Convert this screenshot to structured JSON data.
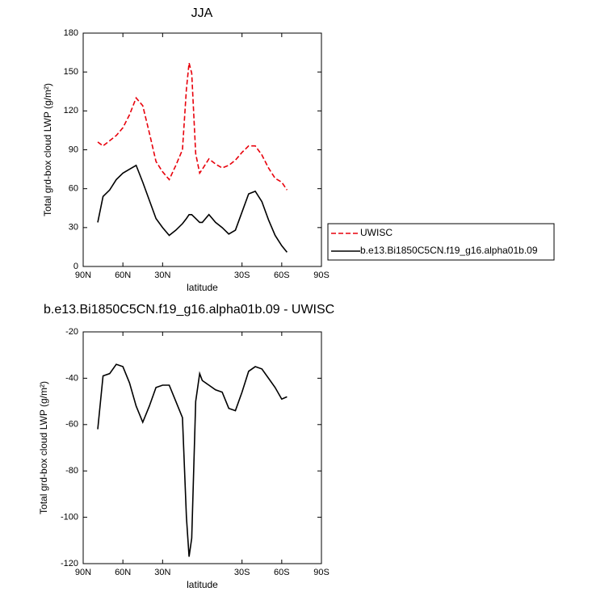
{
  "chart_data": [
    {
      "type": "line",
      "title": "JJA",
      "xlabel": "latitude",
      "ylabel": "Total grd-box cloud LWP (g/m²)",
      "x": [
        79,
        75,
        70,
        65,
        60,
        55,
        50,
        45,
        40,
        35,
        30,
        25,
        20,
        15,
        12,
        10,
        8,
        5,
        2,
        0,
        -5,
        -10,
        -15,
        -20,
        -25,
        -30,
        -35,
        -40,
        -45,
        -50,
        -55,
        -60,
        -64
      ],
      "series": [
        {
          "name": "UWISC",
          "color": "#e8000b",
          "dashed": true,
          "values": [
            96,
            93,
            97,
            101,
            107,
            117,
            130,
            124,
            103,
            81,
            73,
            67,
            78,
            90,
            137,
            157,
            149,
            87,
            72,
            75,
            83,
            79,
            76,
            78,
            82,
            88,
            93,
            93,
            86,
            76,
            68,
            65,
            59
          ]
        },
        {
          "name": "b.e13.Bi1850C5CN.f19_g16.alpha01b.09",
          "color": "#000000",
          "dashed": false,
          "values": [
            34,
            54,
            59,
            67,
            72,
            75,
            78,
            65,
            51,
            37,
            30,
            24,
            28,
            33,
            37,
            40,
            40,
            37,
            34,
            34,
            40,
            34,
            30,
            25,
            28,
            42,
            56,
            58,
            50,
            36,
            24,
            16,
            11
          ]
        }
      ],
      "xlim": [
        90,
        -90
      ],
      "xticks": [
        {
          "value": 90,
          "label": "90N"
        },
        {
          "value": 60,
          "label": "60N"
        },
        {
          "value": 30,
          "label": "30N"
        },
        {
          "value": -30,
          "label": "30S"
        },
        {
          "value": -60,
          "label": "60S"
        },
        {
          "value": -90,
          "label": "90S"
        }
      ],
      "ylim": [
        0,
        180
      ],
      "yticks": [
        0,
        30,
        60,
        90,
        120,
        150,
        180
      ],
      "legend": "right"
    },
    {
      "type": "line",
      "title": "b.e13.Bi1850C5CN.f19_g16.alpha01b.09 - UWISC",
      "xlabel": "latitude",
      "ylabel": "Total grd-box cloud LWP (g/m²)",
      "x": [
        79,
        75,
        70,
        65,
        60,
        55,
        50,
        45,
        40,
        35,
        30,
        25,
        20,
        15,
        12,
        10,
        8,
        5,
        2,
        0,
        -5,
        -10,
        -15,
        -20,
        -25,
        -30,
        -35,
        -40,
        -45,
        -50,
        -55,
        -60,
        -64
      ],
      "values": [
        -62,
        -39,
        -38,
        -34,
        -35,
        -42,
        -52,
        -59,
        -52,
        -44,
        -43,
        -43,
        -50,
        -57,
        -100,
        -117,
        -109,
        -50,
        -38,
        -41,
        -43,
        -45,
        -46,
        -53,
        -54,
        -46,
        -37,
        -35,
        -36,
        -40,
        -44,
        -49,
        -48
      ],
      "color": "#000000",
      "xlim": [
        90,
        -90
      ],
      "xticks": [
        {
          "value": 90,
          "label": "90N"
        },
        {
          "value": 60,
          "label": "60N"
        },
        {
          "value": 30,
          "label": "30N"
        },
        {
          "value": -30,
          "label": "30S"
        },
        {
          "value": -60,
          "label": "60S"
        },
        {
          "value": -90,
          "label": "90S"
        }
      ],
      "ylim": [
        -120,
        -20
      ],
      "yticks": [
        -120,
        -100,
        -80,
        -60,
        -40,
        -20
      ]
    }
  ]
}
